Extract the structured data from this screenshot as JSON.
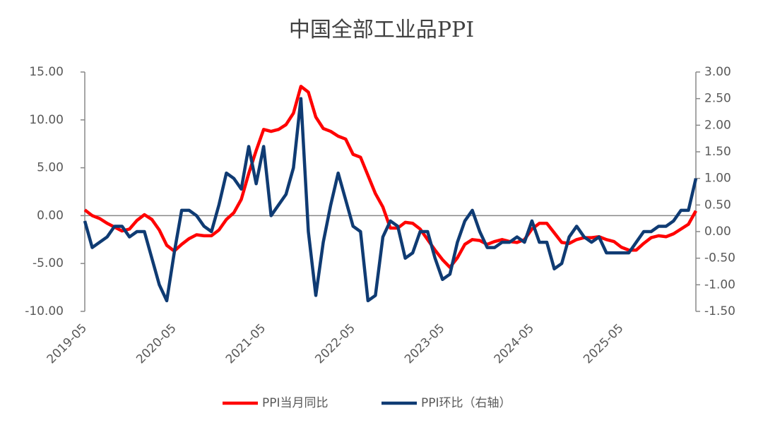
{
  "chart_data": {
    "type": "line",
    "title": "中国全部工业品PPI",
    "categories": [
      "2019-05",
      null,
      null,
      null,
      null,
      null,
      null,
      null,
      null,
      null,
      null,
      null,
      "2020-05",
      null,
      null,
      null,
      null,
      null,
      null,
      null,
      null,
      null,
      null,
      null,
      "2021-05",
      null,
      null,
      null,
      null,
      null,
      null,
      null,
      null,
      null,
      null,
      null,
      "2022-05",
      null,
      null,
      null,
      null,
      null,
      null,
      null,
      null,
      null,
      null,
      null,
      "2023-05",
      null,
      null,
      null,
      null,
      null,
      null,
      null,
      null,
      null,
      null,
      null,
      "2024-05",
      null,
      null,
      null,
      null,
      null,
      null,
      null,
      null,
      null,
      null,
      null,
      "2025-05",
      null,
      null,
      null,
      null,
      null,
      null,
      null,
      null,
      null,
      null
    ],
    "series": [
      {
        "name": "PPI当月同比",
        "color": "#ff0000",
        "values": [
          0.6,
          0,
          -0.3,
          -0.8,
          -1.2,
          -1.6,
          -1.4,
          -0.5,
          0.1,
          -0.4,
          -1.5,
          -3.1,
          -3.7,
          -3.0,
          -2.4,
          -2.0,
          -2.1,
          -2.1,
          -1.5,
          -0.4,
          0.3,
          1.7,
          4.4,
          6.8,
          9.0,
          8.8,
          9.0,
          9.5,
          10.7,
          13.5,
          12.9,
          10.3,
          9.1,
          8.8,
          8.3,
          8.0,
          6.4,
          6.1,
          4.2,
          2.3,
          0.9,
          -1.3,
          -1.3,
          -0.7,
          -0.8,
          -1.4,
          -2.5,
          -3.6,
          -4.6,
          -5.4,
          -4.4,
          -3.0,
          -2.5,
          -2.6,
          -3.0,
          -2.7,
          -2.5,
          -2.7,
          -2.8,
          -2.5,
          -1.4,
          -0.8,
          -0.8,
          -1.8,
          -2.8,
          -2.9,
          -2.5,
          -2.3,
          -2.3,
          -2.2,
          -2.5,
          -2.7,
          -3.3,
          -3.6,
          -3.6,
          -2.9,
          -2.3,
          -2.1,
          -2.2,
          -1.9,
          -1.4,
          -0.9,
          0.5
        ]
      },
      {
        "name": "PPI环比（右轴）",
        "color": "#0f3b73",
        "axis": "y2",
        "values": [
          0.2,
          -0.3,
          -0.2,
          -0.1,
          0.1,
          0.1,
          -0.1,
          0,
          0,
          -0.5,
          -1.0,
          -1.3,
          -0.4,
          0.4,
          0.4,
          0.3,
          0.1,
          0,
          0.5,
          1.1,
          1.0,
          0.8,
          1.6,
          0.9,
          1.6,
          0.3,
          0.5,
          0.7,
          1.2,
          2.5,
          0,
          -1.2,
          -0.2,
          0.5,
          1.1,
          0.6,
          0.1,
          0,
          -1.3,
          -1.2,
          -0.1,
          0.2,
          0.1,
          -0.5,
          -0.4,
          0,
          0,
          -0.5,
          -0.9,
          -0.8,
          -0.2,
          0.2,
          0.4,
          0,
          -0.3,
          -0.3,
          -0.2,
          -0.2,
          -0.1,
          -0.2,
          0.2,
          -0.2,
          -0.2,
          -0.7,
          -0.6,
          -0.1,
          0.1,
          -0.1,
          -0.2,
          -0.1,
          -0.4,
          -0.4,
          -0.4,
          -0.4,
          -0.2,
          0,
          0,
          0.1,
          0.1,
          0.2,
          0.4,
          0.4,
          1.0
        ]
      }
    ],
    "ylim": [
      -10,
      15
    ],
    "yticks": [
      {
        "value": -10,
        "label": "-10.00"
      },
      {
        "value": -5,
        "label": "-5.00"
      },
      {
        "value": 0,
        "label": "0.00"
      },
      {
        "value": 5,
        "label": "5.00"
      },
      {
        "value": 10,
        "label": "10.00"
      },
      {
        "value": 15,
        "label": "15.00"
      }
    ],
    "y2lim": [
      -1.5,
      3
    ],
    "y2ticks": [
      {
        "value": -1.5,
        "label": "-1.50"
      },
      {
        "value": -1,
        "label": "-1.00"
      },
      {
        "value": -0.5,
        "label": "-0.50"
      },
      {
        "value": 0,
        "label": "0.00"
      },
      {
        "value": 0.5,
        "label": "0.50"
      },
      {
        "value": 1,
        "label": "1.00"
      },
      {
        "value": 1.5,
        "label": "1.50"
      },
      {
        "value": 2,
        "label": "2.00"
      },
      {
        "value": 2.5,
        "label": "2.50"
      },
      {
        "value": 3,
        "label": "3.00"
      }
    ],
    "legend": "bottom"
  }
}
